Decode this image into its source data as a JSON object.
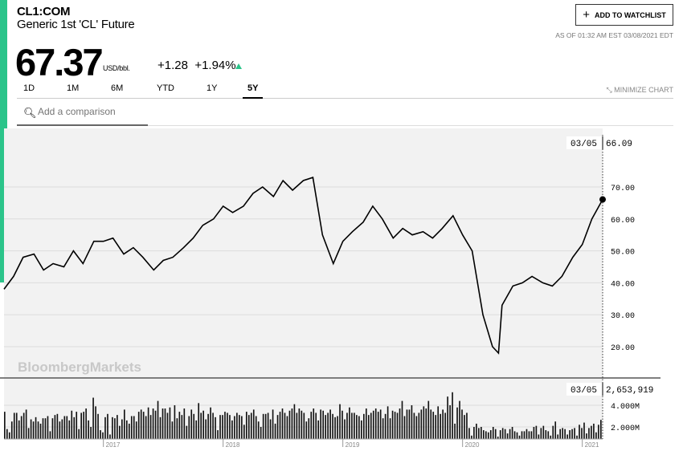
{
  "header": {
    "ticker": "CL1:COM",
    "name": "Generic 1st 'CL' Future",
    "price": "67.37",
    "unit": "USD/bbl.",
    "change": "+1.28",
    "change_pct": "+1.94%",
    "direction": "up",
    "watchlist_label": "ADD TO WATCHLIST",
    "as_of": "AS OF 01:32 AM EST 03/08/2021 EDT"
  },
  "tabs": [
    {
      "label": "1D"
    },
    {
      "label": "1M"
    },
    {
      "label": "6M"
    },
    {
      "label": "YTD"
    },
    {
      "label": "1Y"
    },
    {
      "label": "5Y",
      "active": true
    }
  ],
  "minimize_label": "MINIMIZE CHART",
  "search": {
    "placeholder": "Add a comparison"
  },
  "watermark": "BloombergMarkets",
  "colors": {
    "accent": "#2bc48a",
    "line": "#000000",
    "plot_bg": "#f2f2f2"
  },
  "chart_data": [
    {
      "type": "line",
      "xlabel": "",
      "ylabel": "",
      "ylim": [
        10,
        80
      ],
      "yticks": [
        "70.00",
        "60.00",
        "50.00",
        "40.00",
        "30.00",
        "20.00"
      ],
      "xticks": [
        "2017",
        "2018",
        "2019",
        "2020",
        "2021"
      ],
      "crosshair": {
        "date": "03/05",
        "value": "66.09"
      },
      "x": [
        2016.17,
        2016.25,
        2016.33,
        2016.42,
        2016.5,
        2016.58,
        2016.67,
        2016.75,
        2016.83,
        2016.92,
        2017.0,
        2017.08,
        2017.17,
        2017.25,
        2017.33,
        2017.42,
        2017.5,
        2017.58,
        2017.67,
        2017.75,
        2017.83,
        2017.92,
        2018.0,
        2018.08,
        2018.17,
        2018.25,
        2018.33,
        2018.42,
        2018.5,
        2018.58,
        2018.67,
        2018.75,
        2018.83,
        2018.92,
        2019.0,
        2019.08,
        2019.17,
        2019.25,
        2019.33,
        2019.42,
        2019.5,
        2019.58,
        2019.67,
        2019.75,
        2019.83,
        2019.92,
        2020.0,
        2020.08,
        2020.17,
        2020.25,
        2020.3,
        2020.33,
        2020.42,
        2020.5,
        2020.58,
        2020.67,
        2020.75,
        2020.83,
        2020.92,
        2021.0,
        2021.08,
        2021.17
      ],
      "values": [
        38,
        42,
        48,
        49,
        44,
        46,
        45,
        50,
        46,
        53,
        53,
        54,
        49,
        51,
        48,
        44,
        47,
        48,
        51,
        54,
        58,
        60,
        64,
        62,
        64,
        68,
        70,
        67,
        72,
        69,
        72,
        73,
        55,
        46,
        53,
        56,
        59,
        64,
        60,
        54,
        57,
        55,
        56,
        54,
        57,
        61,
        55,
        50,
        30,
        20,
        18,
        33,
        39,
        40,
        42,
        40,
        39,
        42,
        48,
        52,
        60,
        66.09
      ]
    },
    {
      "type": "bar",
      "ylabel": "",
      "yticks": [
        "4.000M",
        "2.000M"
      ],
      "crosshair": {
        "date": "03/05",
        "value": "2,653,919"
      },
      "values": [
        3.4,
        1.8,
        1.5,
        2.5,
        3.3,
        3.3,
        2.6,
        3.0,
        3.3,
        3.6,
        1.9,
        2.7,
        2.5,
        2.9,
        2.5,
        2.3,
        2.8,
        2.8,
        3.0,
        1.6,
        2.8,
        3.1,
        3.2,
        2.5,
        2.7,
        3.0,
        3.0,
        2.6,
        3.5,
        2.9,
        3.4,
        1.8,
        3.3,
        3.4,
        3.7,
        2.6,
        2.0,
        4.7,
        3.9,
        3.2,
        1.7,
        1.5,
        2.9,
        3.2,
        1.3,
        2.9,
        2.8,
        3.1,
        2.1,
        2.7,
        3.6,
        2.6,
        2.3,
        3.0,
        3.0,
        2.5,
        3.4,
        3.6,
        3.4,
        3.0,
        3.8,
        3.1,
        3.7,
        3.5,
        4.4,
        2.9,
        3.7,
        3.7,
        3.3,
        3.8,
        2.5,
        4.0,
        2.8,
        3.4,
        3.1,
        3.7,
        2.1,
        3.0,
        3.6,
        3.2,
        2.6,
        4.2,
        3.3,
        3.5,
        2.7,
        3.2,
        3.8,
        3.3,
        2.9,
        1.7,
        3.1,
        3.1,
        3.4,
        3.3,
        3.1,
        2.6,
        3.0,
        3.3,
        3.1,
        3.0,
        2.2,
        3.4,
        3.1,
        3.3,
        3.6,
        3.0,
        2.5,
        2.0,
        3.2,
        3.2,
        3.3,
        2.7,
        3.6,
        2.3,
        3.1,
        3.4,
        3.7,
        3.3,
        3.0,
        3.5,
        3.7,
        4.1,
        3.3,
        3.7,
        3.5,
        3.3,
        2.5,
        2.8,
        3.4,
        3.7,
        3.3,
        2.6,
        3.6,
        3.5,
        3.1,
        3.3,
        3.6,
        3.2,
        2.9,
        3.0,
        4.1,
        3.5,
        2.7,
        3.3,
        3.8,
        3.3,
        3.3,
        3.1,
        3.0,
        2.6,
        3.2,
        3.7,
        3.1,
        3.3,
        3.5,
        3.7,
        3.4,
        3.6,
        2.8,
        3.2,
        3.9,
        2.8,
        3.5,
        3.4,
        3.3,
        3.7,
        4.4,
        3.0,
        3.6,
        3.6,
        4.0,
        3.3,
        3.0,
        3.3,
        3.6,
        3.9,
        3.7,
        4.4,
        3.6,
        3.4,
        3.1,
        3.9,
        3.2,
        3.6,
        3.3,
        4.8,
        4.0,
        5.2,
        2.3,
        3.8,
        4.4,
        3.6,
        3.1,
        3.3,
        1.9,
        1.2,
        2.0,
        2.3,
        1.9,
        2.0,
        1.7,
        1.6,
        1.5,
        1.7,
        2.0,
        1.8,
        1.1,
        1.7,
        1.9,
        1.8,
        1.4,
        1.8,
        2.0,
        1.6,
        1.5,
        1.2,
        1.6,
        1.6,
        1.8,
        1.6,
        1.6,
        2.0,
        2.1,
        1.3,
        1.9,
        2.1,
        1.7,
        1.6,
        1.2,
        2.1,
        2.5,
        1.3,
        1.8,
        1.9,
        1.8,
        1.3,
        1.7,
        1.8,
        1.9,
        1.2,
        2.2,
        1.9,
        2.4,
        1.4,
        1.9,
        2.1,
        2.3,
        1.5,
        2.2,
        2.65
      ]
    }
  ]
}
